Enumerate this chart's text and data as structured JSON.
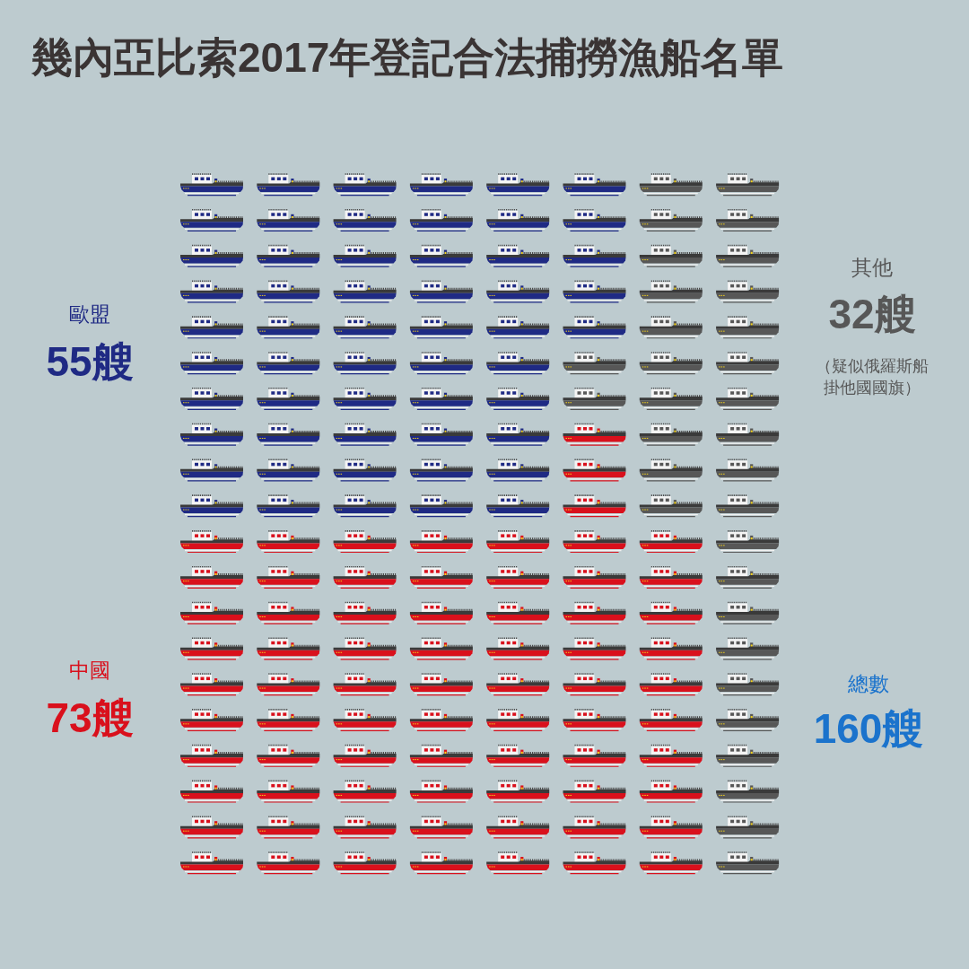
{
  "chart_data": {
    "type": "other",
    "title": "幾內亞比索2017年登記合法捕撈漁船名單",
    "categories": [
      "歐盟",
      "中國",
      "其他"
    ],
    "values": [
      55,
      73,
      32
    ],
    "value_labels": [
      "55艘",
      "73艘",
      "32艘"
    ],
    "colors": [
      "#1f2a84",
      "#d9101c",
      "#575757"
    ],
    "annotations": [
      "（疑似俄羅斯船掛他國國旗）",
      "總數",
      "160艘"
    ]
  }
}
